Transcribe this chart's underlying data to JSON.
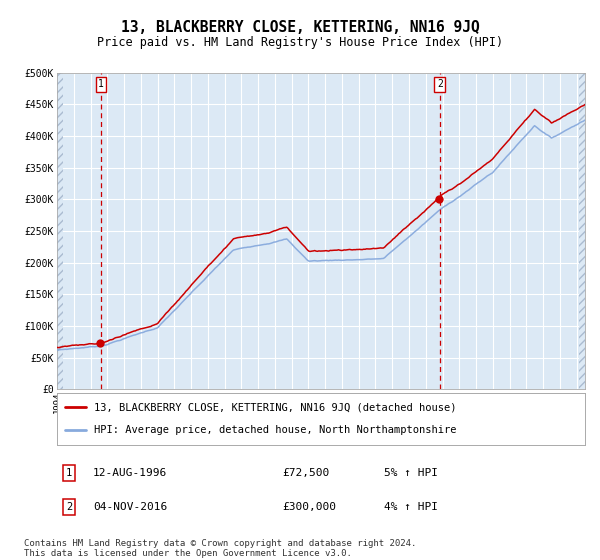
{
  "title": "13, BLACKBERRY CLOSE, KETTERING, NN16 9JQ",
  "subtitle": "Price paid vs. HM Land Registry's House Price Index (HPI)",
  "sale1_year": 1996.62,
  "sale1_price": 72500,
  "sale1_label": "12-AUG-1996",
  "sale1_pct": "5% ↑ HPI",
  "sale2_year": 2016.84,
  "sale2_price": 300000,
  "sale2_label": "04-NOV-2016",
  "sale2_pct": "4% ↑ HPI",
  "line_color_house": "#cc0000",
  "line_color_hpi": "#88aadd",
  "background_color": "#dce9f5",
  "hatch_color": "#aabbd0",
  "grid_color": "#ffffff",
  "vline_color": "#cc0000",
  "legend_house": "13, BLACKBERRY CLOSE, KETTERING, NN16 9JQ (detached house)",
  "legend_hpi": "HPI: Average price, detached house, North Northamptonshire",
  "footer": "Contains HM Land Registry data © Crown copyright and database right 2024.\nThis data is licensed under the Open Government Licence v3.0.",
  "ylim": [
    0,
    500000
  ],
  "yticks": [
    0,
    50000,
    100000,
    150000,
    200000,
    250000,
    300000,
    350000,
    400000,
    450000,
    500000
  ],
  "xlim_start": 1994.0,
  "xlim_end": 2025.5,
  "title_fontsize": 10.5,
  "subtitle_fontsize": 8.5,
  "tick_fontsize": 7,
  "legend_fontsize": 7.5,
  "ann_fontsize": 8,
  "footer_fontsize": 6.5
}
